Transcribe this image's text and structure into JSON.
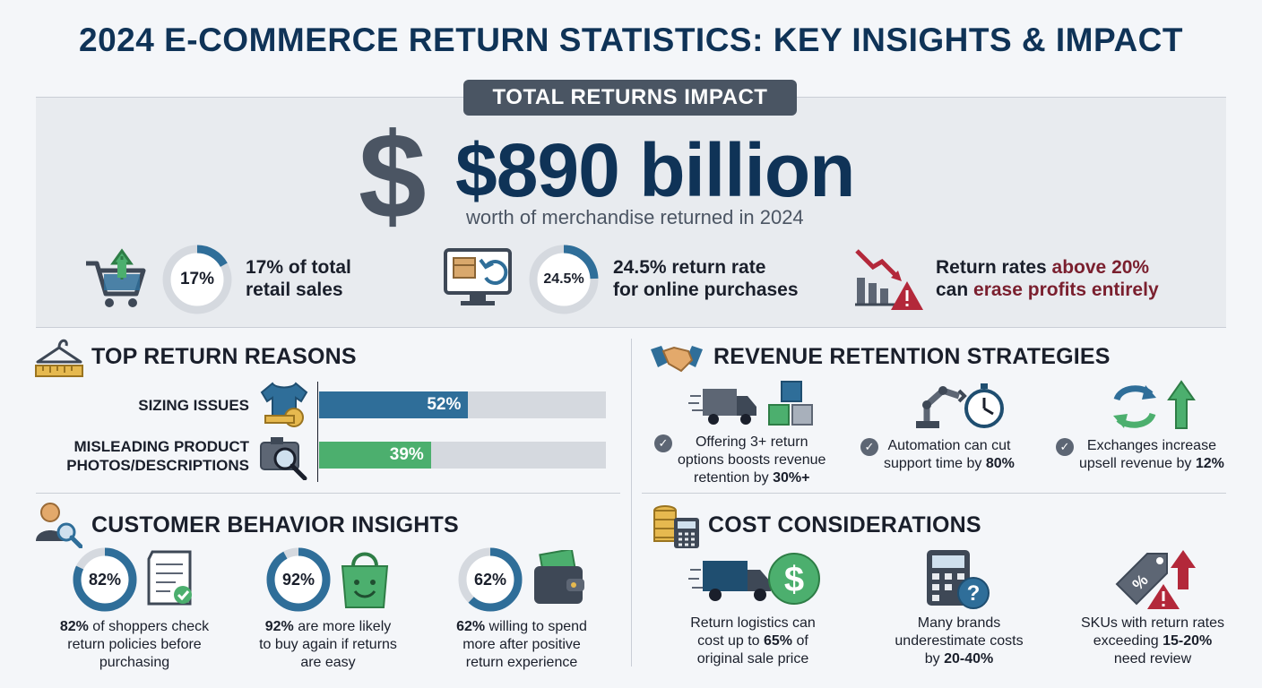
{
  "title": "2024 E-COMMERCE RETURN STATISTICS: KEY INSIGHTS & IMPACT",
  "hero": {
    "tag": "TOTAL RETURNS IMPACT",
    "dollar_symbol": "$",
    "value": "$890 billion",
    "subtitle": "worth of merchandise returned in 2024",
    "stats": [
      {
        "ring_label": "17%",
        "ring_pct": 17,
        "line1": "17% of total",
        "line2": "retail sales"
      },
      {
        "ring_label": "24.5%",
        "ring_pct": 24.5,
        "line1": "24.5% return rate",
        "line2": "for online purchases"
      },
      {
        "line1_pre": "Return rates ",
        "line1_em": "above 20%",
        "line2_pre": "can ",
        "line2_em": "erase profits entirely"
      }
    ]
  },
  "reasons": {
    "title": "TOP RETURN REASONS",
    "items": [
      {
        "label_lines": [
          "SIZING ISSUES"
        ],
        "value": 52,
        "value_label": "52%",
        "color": "#2f6e99"
      },
      {
        "label_lines": [
          "MISLEADING PRODUCT",
          "PHOTOS/DESCRIPTIONS"
        ],
        "value": 39,
        "value_label": "39%",
        "color": "#4caf6e"
      }
    ]
  },
  "retention": {
    "title": "REVENUE RETENTION STRATEGIES",
    "items": [
      {
        "lines": [
          "Offering 3+ return",
          "options boosts revenue"
        ],
        "last_pre": "retention by ",
        "last_em": "30%+"
      },
      {
        "lines": [
          "Automation can cut"
        ],
        "last_pre": "support time by ",
        "last_em": "80%"
      },
      {
        "lines": [
          "Exchanges increase"
        ],
        "last_pre": "upsell revenue by ",
        "last_em": "12%"
      }
    ]
  },
  "behavior": {
    "title": "CUSTOMER BEHAVIOR INSIGHTS",
    "items": [
      {
        "ring_label": "82%",
        "ring_pct": 82,
        "bold": "82%",
        "rest_1": " of shoppers check",
        "line2": "return policies before",
        "line3": "purchasing"
      },
      {
        "ring_label": "92%",
        "ring_pct": 92,
        "bold": "92%",
        "rest_1": " are more likely",
        "line2": "to buy again if returns",
        "line3": "are easy"
      },
      {
        "ring_label": "62%",
        "ring_pct": 62,
        "bold": "62%",
        "rest_1": " willing to spend",
        "line2": "more after positive",
        "line3": "return experience"
      }
    ]
  },
  "cost": {
    "title": "COST CONSIDERATIONS",
    "items": [
      {
        "line1": "Return logistics can",
        "line2_pre": "cost up to ",
        "line2_em": "65%",
        "line2_post": " of",
        "line3_pre": "original sale price",
        "line3_em": ""
      },
      {
        "line1": "Many brands",
        "line2_pre": "underestimate costs",
        "line2_em": "",
        "line2_post": "",
        "line3_pre": "by ",
        "line3_em": "20-40%"
      },
      {
        "line1": "SKUs with return rates",
        "line2_pre": "exceeding ",
        "line2_em": "15-20%",
        "line2_post": "",
        "line3_pre": "need review",
        "line3_em": ""
      }
    ]
  },
  "colors": {
    "navy": "#0f3357",
    "ring_blue": "#2f6e99",
    "ring_track": "#d5d9df",
    "green": "#4caf6e",
    "red": "#b3283a",
    "alert_red": "#7a1f2e"
  },
  "icons": [
    "cart-upload-icon",
    "monitor-return-icon",
    "chart-decline-warning-icon",
    "hanger-ruler-icon",
    "tshirt-tape-icon",
    "camera-search-icon",
    "handshake-icon",
    "truck-boxes-icon",
    "robot-arm-stopwatch-icon",
    "exchange-arrows-icon",
    "person-search-icon",
    "receipt-check-icon",
    "shopping-bag-smile-icon",
    "wallet-cash-icon",
    "coins-calculator-icon",
    "truck-dollar-icon",
    "calculator-question-icon",
    "price-tag-warning-icon"
  ]
}
